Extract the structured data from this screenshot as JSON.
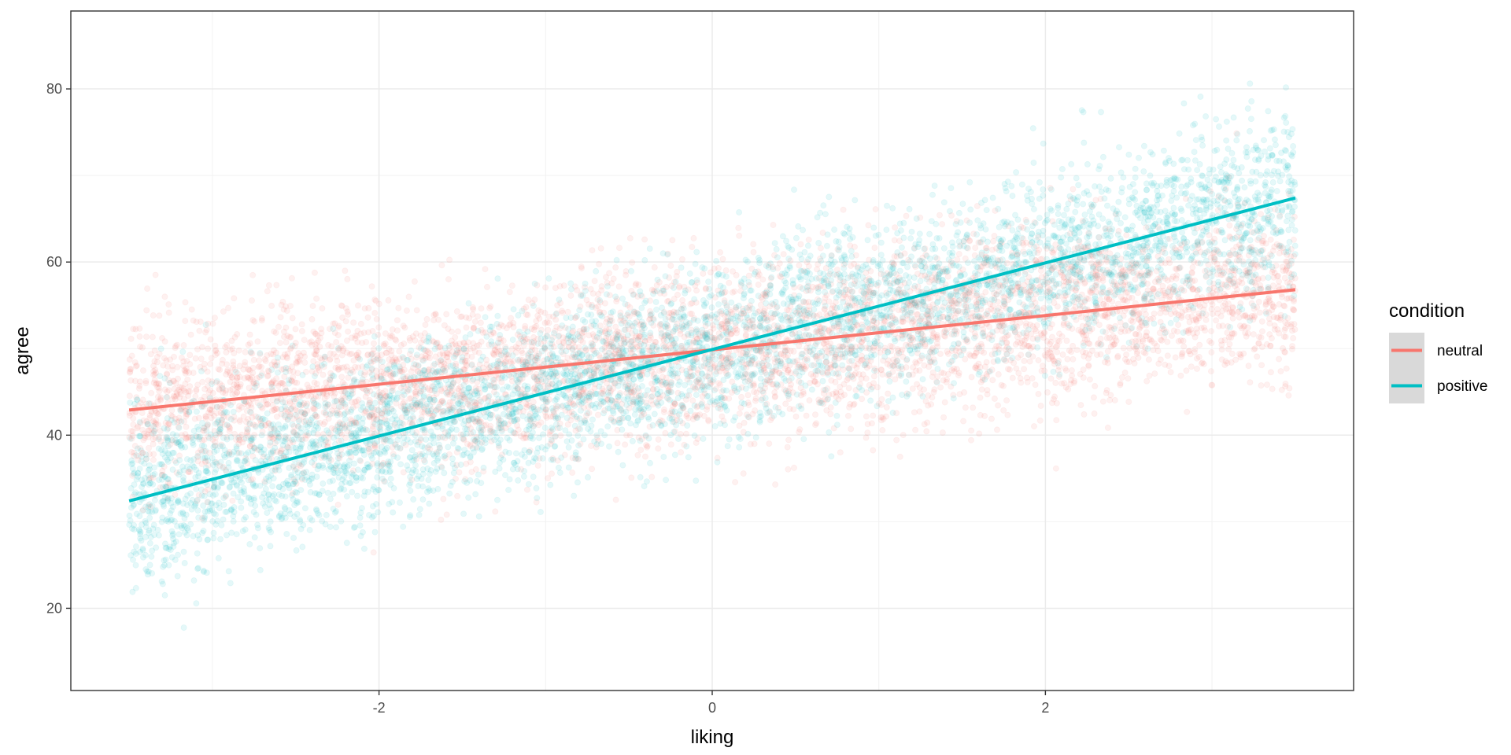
{
  "chart_data": {
    "type": "scatter",
    "title": "",
    "xlabel": "liking",
    "ylabel": "agree",
    "xlim": [
      -3.85,
      3.85
    ],
    "ylim": [
      10.5,
      89
    ],
    "x_ticks": [
      -2,
      0,
      2
    ],
    "x_minor_ticks": [
      -3,
      -1,
      1,
      3
    ],
    "y_ticks": [
      20,
      40,
      60,
      80
    ],
    "y_minor_ticks": [
      30,
      50,
      70
    ],
    "x_tick_labels": [
      "-2",
      "0",
      "2"
    ],
    "y_tick_labels": [
      "20",
      "40",
      "60",
      "80"
    ],
    "grid": true,
    "legend": {
      "title": "condition",
      "position": "right"
    },
    "point_alpha": 0.1,
    "x_range": [
      -3.5,
      3.5
    ],
    "series": [
      {
        "name": "neutral",
        "color": "#F8766D",
        "line": {
          "x": [
            -3.5,
            3.5
          ],
          "y": [
            42.9,
            56.8
          ]
        },
        "scatter": {
          "n": 5000,
          "slope": 2.0,
          "intercept": 49.9,
          "sd": 5.0
        }
      },
      {
        "name": "positive",
        "color": "#00BFC4",
        "line": {
          "x": [
            -3.5,
            3.5
          ],
          "y": [
            32.4,
            67.4
          ]
        },
        "scatter": {
          "n": 5000,
          "slope": 5.0,
          "intercept": 49.9,
          "sd": 5.0
        }
      }
    ]
  }
}
